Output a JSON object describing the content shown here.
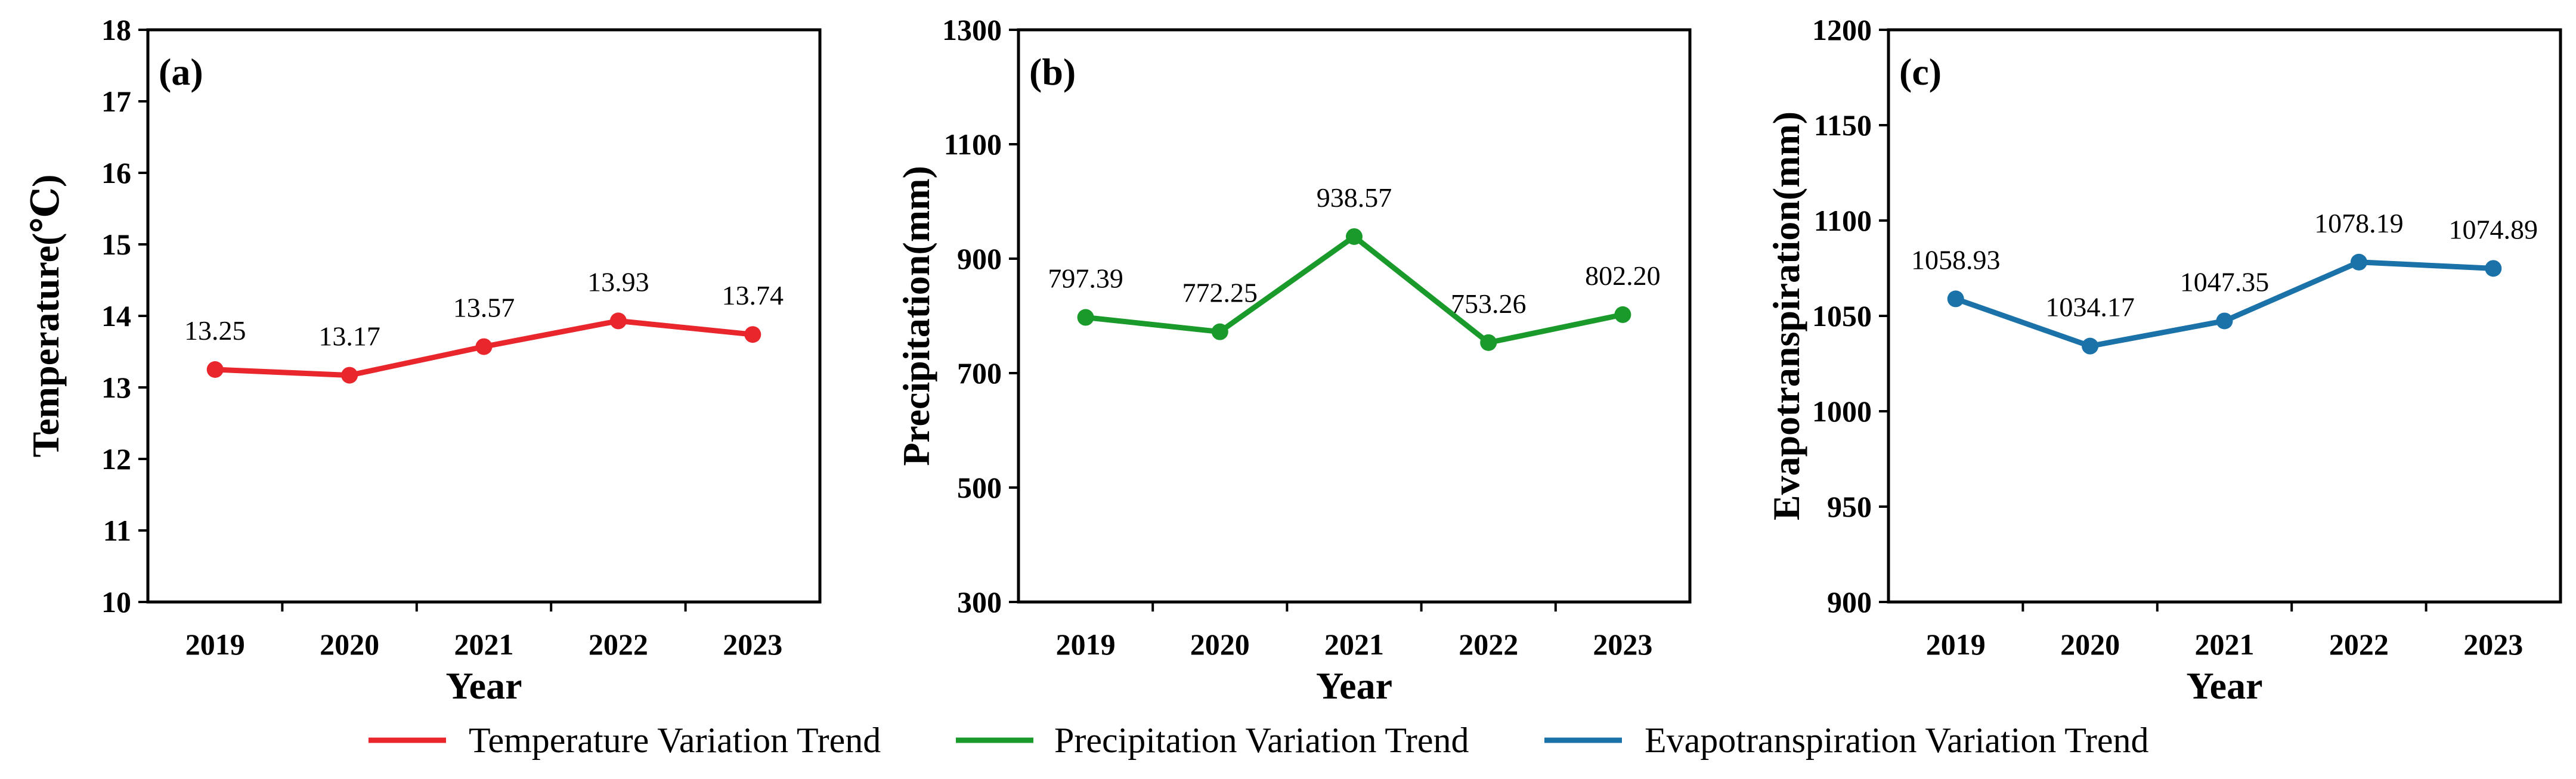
{
  "legend": [
    {
      "label": "Temperature Variation Trend",
      "color": "#e8262c"
    },
    {
      "label": "Precipitation Variation Trend",
      "color": "#1a9a2a"
    },
    {
      "label": "Evapotranspiration Variation Trend",
      "color": "#1a72a8"
    }
  ],
  "chart_data": [
    {
      "type": "line",
      "panel": "(a)",
      "xlabel": "Year",
      "ylabel": "Temperature(℃)",
      "categories": [
        "2019",
        "2020",
        "2021",
        "2022",
        "2023"
      ],
      "ylim": [
        10,
        18
      ],
      "yticks": [
        10,
        11,
        12,
        13,
        14,
        15,
        16,
        17,
        18
      ],
      "ytick_labels": [
        "10",
        "11",
        "12",
        "13",
        "14",
        "15",
        "16",
        "17",
        "18"
      ],
      "series": [
        {
          "name": "Temperature Variation Trend",
          "color": "#e8262c",
          "values": [
            13.25,
            13.17,
            13.57,
            13.93,
            13.74
          ],
          "labels": [
            "13.25",
            "13.17",
            "13.57",
            "13.93",
            "13.74"
          ]
        }
      ],
      "grid": false
    },
    {
      "type": "line",
      "panel": "(b)",
      "xlabel": "Year",
      "ylabel": "Precipitation(mm)",
      "categories": [
        "2019",
        "2020",
        "2021",
        "2022",
        "2023"
      ],
      "ylim": [
        300,
        1300
      ],
      "yticks": [
        300,
        500,
        700,
        900,
        1100,
        1300
      ],
      "ytick_labels": [
        "300",
        "500",
        "700",
        "900",
        "1100",
        "1300"
      ],
      "series": [
        {
          "name": "Precipitation Variation Trend",
          "color": "#1a9a2a",
          "values": [
            797.39,
            772.25,
            938.57,
            753.26,
            802.2
          ],
          "labels": [
            "797.39",
            "772.25",
            "938.57",
            "753.26",
            "802.20"
          ]
        }
      ],
      "grid": false
    },
    {
      "type": "line",
      "panel": "(c)",
      "xlabel": "Year",
      "ylabel": "Evapotranspiration(mm)",
      "categories": [
        "2019",
        "2020",
        "2021",
        "2022",
        "2023"
      ],
      "ylim": [
        900,
        1200
      ],
      "yticks": [
        900,
        950,
        1000,
        1050,
        1100,
        1150,
        1200
      ],
      "ytick_labels": [
        "900",
        "950",
        "1000",
        "1050",
        "1100",
        "1150",
        "1200"
      ],
      "series": [
        {
          "name": "Evapotranspiration Variation Trend",
          "color": "#1a72a8",
          "values": [
            1058.93,
            1034.17,
            1047.35,
            1078.19,
            1074.89
          ],
          "labels": [
            "1058.93",
            "1034.17",
            "1047.35",
            "1078.19",
            "1074.89"
          ]
        }
      ],
      "grid": false
    }
  ]
}
